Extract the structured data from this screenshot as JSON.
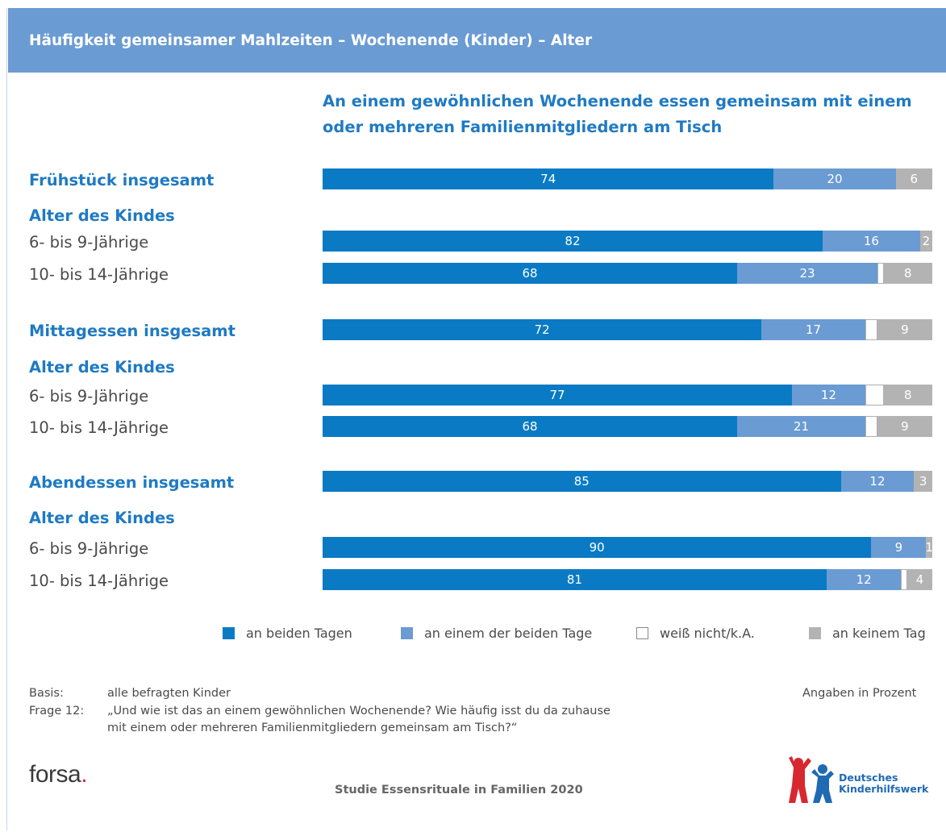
{
  "header": {
    "title": "Häufigkeit gemeinsamer Mahlzeiten – Wochenende (Kinder) – Alter"
  },
  "chart_data": {
    "type": "bar",
    "orientation": "horizontal",
    "stacked": true,
    "subtitle": "An einem gewöhnlichen Wochenende essen gemeinsam mit einem oder mehreren Familienmitgliedern am Tisch",
    "series": [
      {
        "name": "an beiden Tagen",
        "color": "#0a7ac4"
      },
      {
        "name": "an einem der beiden Tage",
        "color": "#6a9bd3"
      },
      {
        "name": "weiß nicht/k.A.",
        "color": "#ffffff"
      },
      {
        "name": "an keinem Tag",
        "color": "#b3b3b3"
      }
    ],
    "rows": [
      {
        "label": "Frühstück insgesamt",
        "kind": "head",
        "values": [
          74,
          20,
          0,
          6
        ]
      },
      {
        "label": "Alter des Kindes",
        "kind": "head",
        "values": null
      },
      {
        "label": "6- bis 9-Jährige",
        "kind": "sub",
        "values": [
          82,
          16,
          0,
          2
        ]
      },
      {
        "label": "10- bis 14-Jährige",
        "kind": "sub",
        "values": [
          68,
          23,
          1,
          8
        ]
      },
      {
        "label": "Mittagessen insgesamt",
        "kind": "head",
        "values": [
          72,
          17,
          2,
          9
        ]
      },
      {
        "label": "Alter des Kindes",
        "kind": "head",
        "values": null
      },
      {
        "label": "6- bis 9-Jährige",
        "kind": "sub",
        "values": [
          77,
          12,
          3,
          8
        ]
      },
      {
        "label": "10- bis 14-Jährige",
        "kind": "sub",
        "values": [
          68,
          21,
          2,
          9
        ]
      },
      {
        "label": "Abendessen insgesamt",
        "kind": "head",
        "values": [
          85,
          12,
          0,
          3
        ]
      },
      {
        "label": "Alter des Kindes",
        "kind": "head",
        "values": null
      },
      {
        "label": "6- bis 9-Jährige",
        "kind": "sub",
        "values": [
          90,
          9,
          0,
          1
        ]
      },
      {
        "label": "10- bis 14-Jährige",
        "kind": "sub",
        "values": [
          81,
          12,
          1,
          4
        ]
      }
    ],
    "shown_labels": {
      "2": false
    },
    "unit_note": "Angaben in Prozent"
  },
  "legend": [
    {
      "label": "an beiden Tagen",
      "color": "#0a7ac4"
    },
    {
      "label": "an einem der beiden Tage",
      "color": "#6a9bd3"
    },
    {
      "label": "weiß nicht/k.A.",
      "color": "#ffffff"
    },
    {
      "label": "an keinem Tag",
      "color": "#b3b3b3"
    }
  ],
  "footer": {
    "basis_label": "Basis:",
    "basis_text": "alle befragten Kinder",
    "frage_label": "Frage 12:",
    "frage_line1": "„Und wie ist das an einem gewöhnlichen Wochenende? Wie häufig isst du da zuhause",
    "frage_line2": "mit einem oder mehreren Familienmitgliedern gemeinsam am Tisch?“",
    "unit": "Angaben in Prozent",
    "study": "Studie Essensrituale in Familien 2020",
    "logo_forsa": "forsa",
    "logo_forsa_dot": ".",
    "logo_dkhw_line1": "Deutsches",
    "logo_dkhw_line2": "Kinderhilfswerk"
  }
}
